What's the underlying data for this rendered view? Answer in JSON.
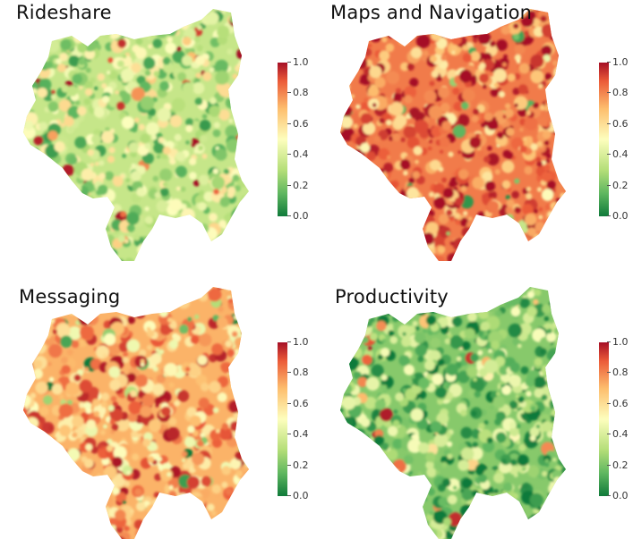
{
  "colorbar_ticks": [
    "1.0",
    "0.8",
    "0.6",
    "0.4",
    "0.2",
    "0.0"
  ],
  "panels": [
    {
      "title": "Rideshare",
      "mean_level": 0.35
    },
    {
      "title": "Maps and Navigation",
      "mean_level": 0.82
    },
    {
      "title": "Messaging",
      "mean_level": 0.72
    },
    {
      "title": "Productivity",
      "mean_level": 0.22
    }
  ]
}
